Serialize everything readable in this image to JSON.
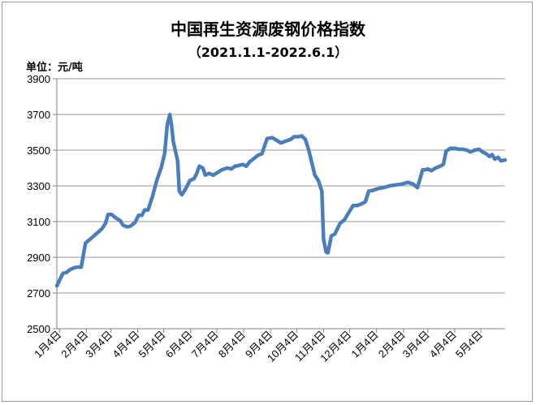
{
  "chart_data": {
    "type": "line",
    "title": "中国再生资源废钢价格指数",
    "subtitle": "（2021.1.1-2022.6.1）",
    "ylabel": "单位：元/吨",
    "ylim": [
      2500,
      3900
    ],
    "yticks": [
      2500,
      2700,
      2900,
      3100,
      3300,
      3500,
      3700,
      3900
    ],
    "xlim": [
      "2021-01-01",
      "2022-06-01"
    ],
    "categories": [
      "1月4日",
      "2月4日",
      "3月4日",
      "4月4日",
      "5月4日",
      "6月4日",
      "7月4日",
      "8月4日",
      "9月4日",
      "10月4日",
      "11月4日",
      "12月4日",
      "1月4日",
      "2月4日",
      "3月4日",
      "4月4日",
      "5月4日"
    ],
    "category_dates": [
      "2021-01-04",
      "2021-02-04",
      "2021-03-04",
      "2021-04-04",
      "2021-05-04",
      "2021-06-04",
      "2021-07-04",
      "2021-08-04",
      "2021-09-04",
      "2021-10-04",
      "2021-11-04",
      "2021-12-04",
      "2022-01-04",
      "2022-02-04",
      "2022-03-04",
      "2022-04-04",
      "2022-05-04"
    ],
    "grid": true,
    "color": "#4a7ebb",
    "series": [
      {
        "name": "",
        "points": [
          [
            "2021-01-01",
            2740
          ],
          [
            "2021-01-05",
            2780
          ],
          [
            "2021-01-08",
            2810
          ],
          [
            "2021-01-12",
            2815
          ],
          [
            "2021-01-16",
            2830
          ],
          [
            "2021-01-20",
            2840
          ],
          [
            "2021-01-25",
            2845
          ],
          [
            "2021-01-29",
            2845
          ],
          [
            "2021-02-03",
            2980
          ],
          [
            "2021-02-08",
            3000
          ],
          [
            "2021-02-15",
            3030
          ],
          [
            "2021-02-22",
            3060
          ],
          [
            "2021-02-26",
            3090
          ],
          [
            "2021-03-01",
            3140
          ],
          [
            "2021-03-05",
            3140
          ],
          [
            "2021-03-10",
            3120
          ],
          [
            "2021-03-15",
            3105
          ],
          [
            "2021-03-18",
            3080
          ],
          [
            "2021-03-23",
            3070
          ],
          [
            "2021-03-27",
            3075
          ],
          [
            "2021-04-01",
            3095
          ],
          [
            "2021-04-05",
            3135
          ],
          [
            "2021-04-09",
            3135
          ],
          [
            "2021-04-12",
            3165
          ],
          [
            "2021-04-16",
            3165
          ],
          [
            "2021-04-21",
            3240
          ],
          [
            "2021-04-26",
            3330
          ],
          [
            "2021-05-01",
            3400
          ],
          [
            "2021-05-05",
            3480
          ],
          [
            "2021-05-08",
            3640
          ],
          [
            "2021-05-11",
            3700
          ],
          [
            "2021-05-13",
            3640
          ],
          [
            "2021-05-15",
            3550
          ],
          [
            "2021-05-20",
            3440
          ],
          [
            "2021-05-22",
            3270
          ],
          [
            "2021-05-25",
            3250
          ],
          [
            "2021-05-30",
            3290
          ],
          [
            "2021-06-03",
            3330
          ],
          [
            "2021-06-08",
            3340
          ],
          [
            "2021-06-11",
            3370
          ],
          [
            "2021-06-14",
            3410
          ],
          [
            "2021-06-18",
            3400
          ],
          [
            "2021-06-21",
            3360
          ],
          [
            "2021-06-25",
            3370
          ],
          [
            "2021-06-30",
            3360
          ],
          [
            "2021-07-05",
            3375
          ],
          [
            "2021-07-10",
            3390
          ],
          [
            "2021-07-16",
            3400
          ],
          [
            "2021-07-21",
            3395
          ],
          [
            "2021-07-25",
            3410
          ],
          [
            "2021-07-30",
            3415
          ],
          [
            "2021-08-03",
            3420
          ],
          [
            "2021-08-07",
            3410
          ],
          [
            "2021-08-11",
            3435
          ],
          [
            "2021-08-15",
            3450
          ],
          [
            "2021-08-20",
            3470
          ],
          [
            "2021-08-25",
            3480
          ],
          [
            "2021-08-31",
            3565
          ],
          [
            "2021-09-06",
            3570
          ],
          [
            "2021-09-11",
            3555
          ],
          [
            "2021-09-16",
            3540
          ],
          [
            "2021-09-21",
            3550
          ],
          [
            "2021-09-27",
            3560
          ],
          [
            "2021-10-01",
            3575
          ],
          [
            "2021-10-06",
            3575
          ],
          [
            "2021-10-10",
            3580
          ],
          [
            "2021-10-14",
            3560
          ],
          [
            "2021-10-18",
            3500
          ],
          [
            "2021-10-21",
            3440
          ],
          [
            "2021-10-25",
            3360
          ],
          [
            "2021-10-29",
            3330
          ],
          [
            "2021-11-02",
            3270
          ],
          [
            "2021-11-04",
            3000
          ],
          [
            "2021-11-07",
            2930
          ],
          [
            "2021-11-09",
            2925
          ],
          [
            "2021-11-13",
            3020
          ],
          [
            "2021-11-17",
            3030
          ],
          [
            "2021-11-23",
            3090
          ],
          [
            "2021-11-28",
            3110
          ],
          [
            "2021-12-03",
            3150
          ],
          [
            "2021-12-08",
            3190
          ],
          [
            "2021-12-13",
            3190
          ],
          [
            "2021-12-18",
            3200
          ],
          [
            "2021-12-22",
            3210
          ],
          [
            "2021-12-26",
            3270
          ],
          [
            "2021-12-31",
            3275
          ],
          [
            "2022-01-06",
            3285
          ],
          [
            "2022-01-12",
            3290
          ],
          [
            "2022-01-19",
            3300
          ],
          [
            "2022-01-26",
            3305
          ],
          [
            "2022-02-02",
            3310
          ],
          [
            "2022-02-09",
            3320
          ],
          [
            "2022-02-15",
            3310
          ],
          [
            "2022-02-20",
            3290
          ],
          [
            "2022-02-23",
            3340
          ],
          [
            "2022-02-26",
            3390
          ],
          [
            "2022-03-01",
            3390
          ],
          [
            "2022-03-04",
            3395
          ],
          [
            "2022-03-08",
            3385
          ],
          [
            "2022-03-13",
            3400
          ],
          [
            "2022-03-18",
            3410
          ],
          [
            "2022-03-22",
            3420
          ],
          [
            "2022-03-25",
            3495
          ],
          [
            "2022-03-30",
            3510
          ],
          [
            "2022-04-04",
            3510
          ],
          [
            "2022-04-09",
            3505
          ],
          [
            "2022-04-14",
            3505
          ],
          [
            "2022-04-18",
            3500
          ],
          [
            "2022-04-22",
            3490
          ],
          [
            "2022-04-27",
            3500
          ],
          [
            "2022-05-02",
            3505
          ],
          [
            "2022-05-06",
            3490
          ],
          [
            "2022-05-10",
            3480
          ],
          [
            "2022-05-14",
            3465
          ],
          [
            "2022-05-17",
            3475
          ],
          [
            "2022-05-20",
            3450
          ],
          [
            "2022-05-24",
            3460
          ],
          [
            "2022-05-27",
            3440
          ],
          [
            "2022-06-01",
            3445
          ]
        ]
      }
    ]
  }
}
